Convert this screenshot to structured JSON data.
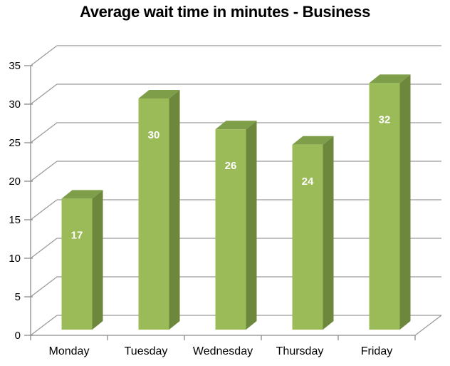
{
  "page": {
    "background": "#ffffff"
  },
  "chart_data": {
    "type": "bar",
    "style": "3d-column",
    "title": "Average wait time in minutes - Business",
    "categories": [
      "Monday",
      "Tuesday",
      "Wednesday",
      "Thursday",
      "Friday"
    ],
    "values": [
      17,
      30,
      26,
      24,
      32
    ],
    "data_labels_shown": true,
    "xlabel": "",
    "ylabel": "",
    "ylim": [
      0,
      35
    ],
    "yticks": [
      0,
      5,
      10,
      15,
      20,
      25,
      30,
      35
    ],
    "grid": true,
    "legend_position": "none",
    "colors": {
      "bar_front": "#9bbb59",
      "bar_top": "#7f9e4a",
      "bar_side": "#6d883c",
      "gridline": "#9b9b9b",
      "axis": "#8c8c8c",
      "tick_text": "#000000",
      "data_label_text": "#ffffff",
      "title_text": "#000000"
    }
  }
}
